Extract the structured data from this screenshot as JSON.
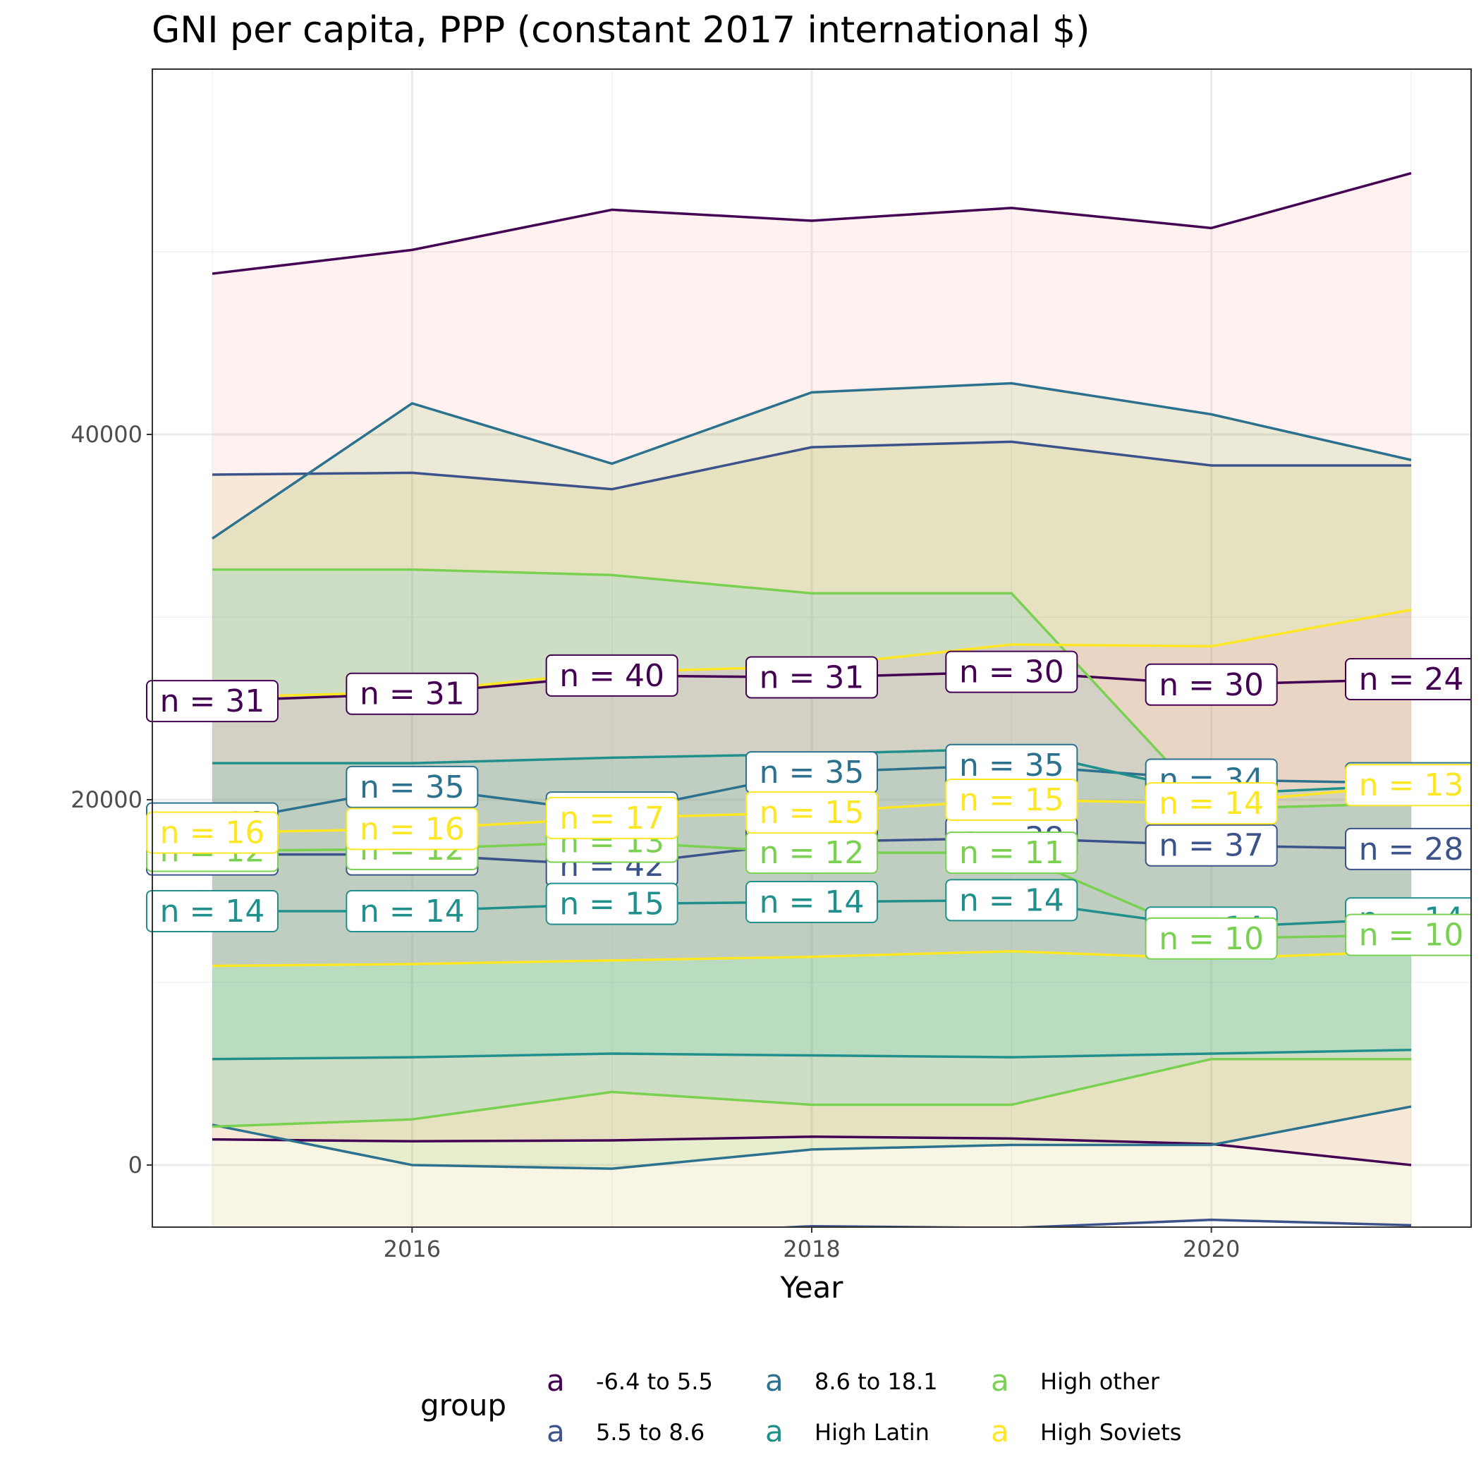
{
  "chart_data": {
    "type": "line",
    "title": "GNI per capita, PPP (constant 2017 international $)",
    "xlabel": "Year",
    "ylabel": "",
    "xlim": [
      2014.7,
      2021.3
    ],
    "ylim": [
      -3400,
      60000
    ],
    "x_ticks": [
      2016,
      2018,
      2020
    ],
    "y_ticks": [
      0,
      20000,
      40000
    ],
    "grid": true,
    "legend_placement": "bottom",
    "legend_title": "group",
    "legend_key_glyph": "a",
    "x": [
      2015,
      2016,
      2017,
      2018,
      2019,
      2020,
      2021
    ],
    "series": [
      {
        "name": "-6.4 to 5.5",
        "color": "#440154",
        "fill": "#F8766D",
        "fill_alpha": 0.1,
        "upper": [
          48800,
          50100,
          52300,
          51700,
          52400,
          51300,
          54300
        ],
        "mean": [
          25400,
          25800,
          26800,
          26700,
          27000,
          26300,
          26600
        ],
        "lower": [
          1400,
          1300,
          1350,
          1550,
          1450,
          1150,
          0
        ],
        "n": [
          31,
          31,
          40,
          31,
          30,
          30,
          24
        ]
      },
      {
        "name": "5.5 to 8.6",
        "color": "#3B528B",
        "fill": "#C49A00",
        "fill_alpha": 0.1,
        "upper": [
          37800,
          37900,
          37000,
          39300,
          39600,
          38300,
          38300
        ],
        "mean": [
          17000,
          17000,
          16400,
          17700,
          17900,
          17500,
          17300
        ],
        "lower": [
          -3500,
          -3550,
          -3900,
          -3350,
          -3450,
          -3000,
          -3300
        ],
        "n": [
          39,
          38,
          42,
          38,
          38,
          37,
          28
        ]
      },
      {
        "name": "8.6 to 18.1",
        "color": "#2C728E",
        "fill": "#53B400",
        "fill_alpha": 0.1,
        "upper": [
          34300,
          41700,
          38400,
          42300,
          42800,
          41100,
          38600
        ],
        "mean": [
          18700,
          20700,
          19300,
          21500,
          21900,
          21100,
          20900
        ],
        "lower": [
          2200,
          0,
          -200,
          850,
          1100,
          1100,
          3200
        ],
        "n": [
          16,
          35,
          17,
          35,
          35,
          34,
          14
        ]
      },
      {
        "name": "High Latin",
        "color": "#21908C",
        "fill": "#00C094",
        "fill_alpha": 0.1,
        "upper": [
          22000,
          22000,
          22300,
          22500,
          22800,
          20300,
          20800
        ],
        "mean": [
          13900,
          13900,
          14300,
          14400,
          14500,
          13000,
          13500
        ],
        "lower": [
          5800,
          5900,
          6100,
          6000,
          5900,
          6100,
          6300
        ],
        "n": [
          14,
          14,
          15,
          14,
          14,
          14,
          14
        ]
      },
      {
        "name": "High other",
        "color": "#7AD151",
        "fill": "#00B6EB",
        "fill_alpha": 0.1,
        "upper": [
          32600,
          32600,
          32300,
          31300,
          31300,
          19500,
          19800
        ],
        "mean": [
          17200,
          17300,
          17700,
          17100,
          17100,
          12400,
          12600
        ],
        "lower": [
          2100,
          2500,
          4000,
          3300,
          3300,
          5800,
          5800
        ],
        "n": [
          12,
          12,
          13,
          12,
          11,
          10,
          10
        ]
      },
      {
        "name": "High Soviets",
        "color": "#FDE725",
        "fill": "#FB61D7",
        "fill_alpha": 0.1,
        "upper": [
          25600,
          25900,
          27000,
          27300,
          28500,
          28400,
          30400
        ],
        "mean": [
          18200,
          18400,
          19000,
          19300,
          20000,
          19800,
          20800
        ],
        "lower": [
          10900,
          11000,
          11200,
          11400,
          11700,
          11300,
          11700
        ],
        "n": [
          16,
          16,
          17,
          15,
          15,
          14,
          13
        ]
      }
    ]
  }
}
